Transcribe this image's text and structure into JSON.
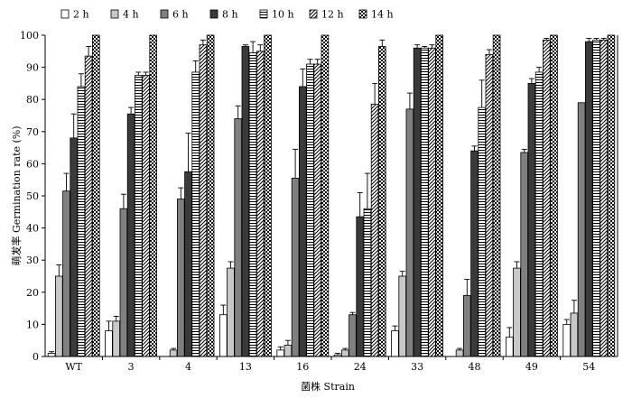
{
  "chart_data": {
    "type": "bar",
    "title": "",
    "xlabel": "菌株 Strain",
    "ylabel": "萌发率 Germination rate (%)",
    "ylim": [
      0,
      100
    ],
    "yticks": [
      0,
      10,
      20,
      30,
      40,
      50,
      60,
      70,
      80,
      90,
      100
    ],
    "grid": false,
    "legend_position": "top",
    "categories": [
      "WT",
      "3",
      "4",
      "13",
      "16",
      "24",
      "33",
      "48",
      "49",
      "54"
    ],
    "series": [
      {
        "name": "2 h",
        "pattern": "white",
        "values": [
          1,
          8,
          0,
          13,
          2,
          0.5,
          8,
          0,
          6,
          10
        ],
        "errors": [
          0.5,
          3,
          0,
          3,
          1,
          0.5,
          1.5,
          0,
          3,
          1.5
        ]
      },
      {
        "name": "4 h",
        "pattern": "light",
        "values": [
          25,
          11,
          2,
          27.5,
          3.5,
          2,
          25,
          2,
          27.5,
          13.5
        ],
        "errors": [
          3.5,
          1.5,
          0.5,
          2,
          1.5,
          0.5,
          1.5,
          0.5,
          2,
          4
        ]
      },
      {
        "name": "6 h",
        "pattern": "mid",
        "values": [
          51.5,
          46,
          49,
          74,
          55.5,
          13,
          77,
          19,
          63.5,
          79
        ],
        "errors": [
          5.5,
          4.5,
          3.5,
          4,
          9,
          0.7,
          5,
          5,
          1,
          0
        ]
      },
      {
        "name": "8 h",
        "pattern": "dark",
        "values": [
          68,
          75.5,
          57.5,
          96.5,
          84,
          43.5,
          96,
          64,
          85,
          98
        ],
        "errors": [
          7.5,
          2,
          12,
          0.5,
          5.5,
          7.5,
          1,
          1.5,
          1.5,
          1
        ]
      },
      {
        "name": "10 h",
        "pattern": "hlines",
        "values": [
          84,
          87.5,
          88.5,
          94.5,
          91,
          46,
          96,
          77.5,
          88.5,
          98.5
        ],
        "errors": [
          4,
          1,
          3.5,
          3.5,
          1.5,
          11,
          0.5,
          8.5,
          1.5,
          0.5
        ]
      },
      {
        "name": "12 h",
        "pattern": "diagonal",
        "values": [
          93.5,
          87.5,
          97,
          95,
          91,
          78.5,
          96,
          94,
          98.5,
          98.5
        ],
        "errors": [
          3,
          1,
          1.5,
          2,
          1.5,
          6.5,
          1,
          1.5,
          0.5,
          0.5
        ]
      },
      {
        "name": "14 h",
        "pattern": "checker",
        "values": [
          100,
          100,
          100,
          100,
          100,
          96.5,
          100,
          100,
          100,
          100
        ],
        "errors": [
          0,
          0,
          0,
          0,
          0,
          2,
          0,
          0,
          0,
          0
        ]
      }
    ]
  }
}
